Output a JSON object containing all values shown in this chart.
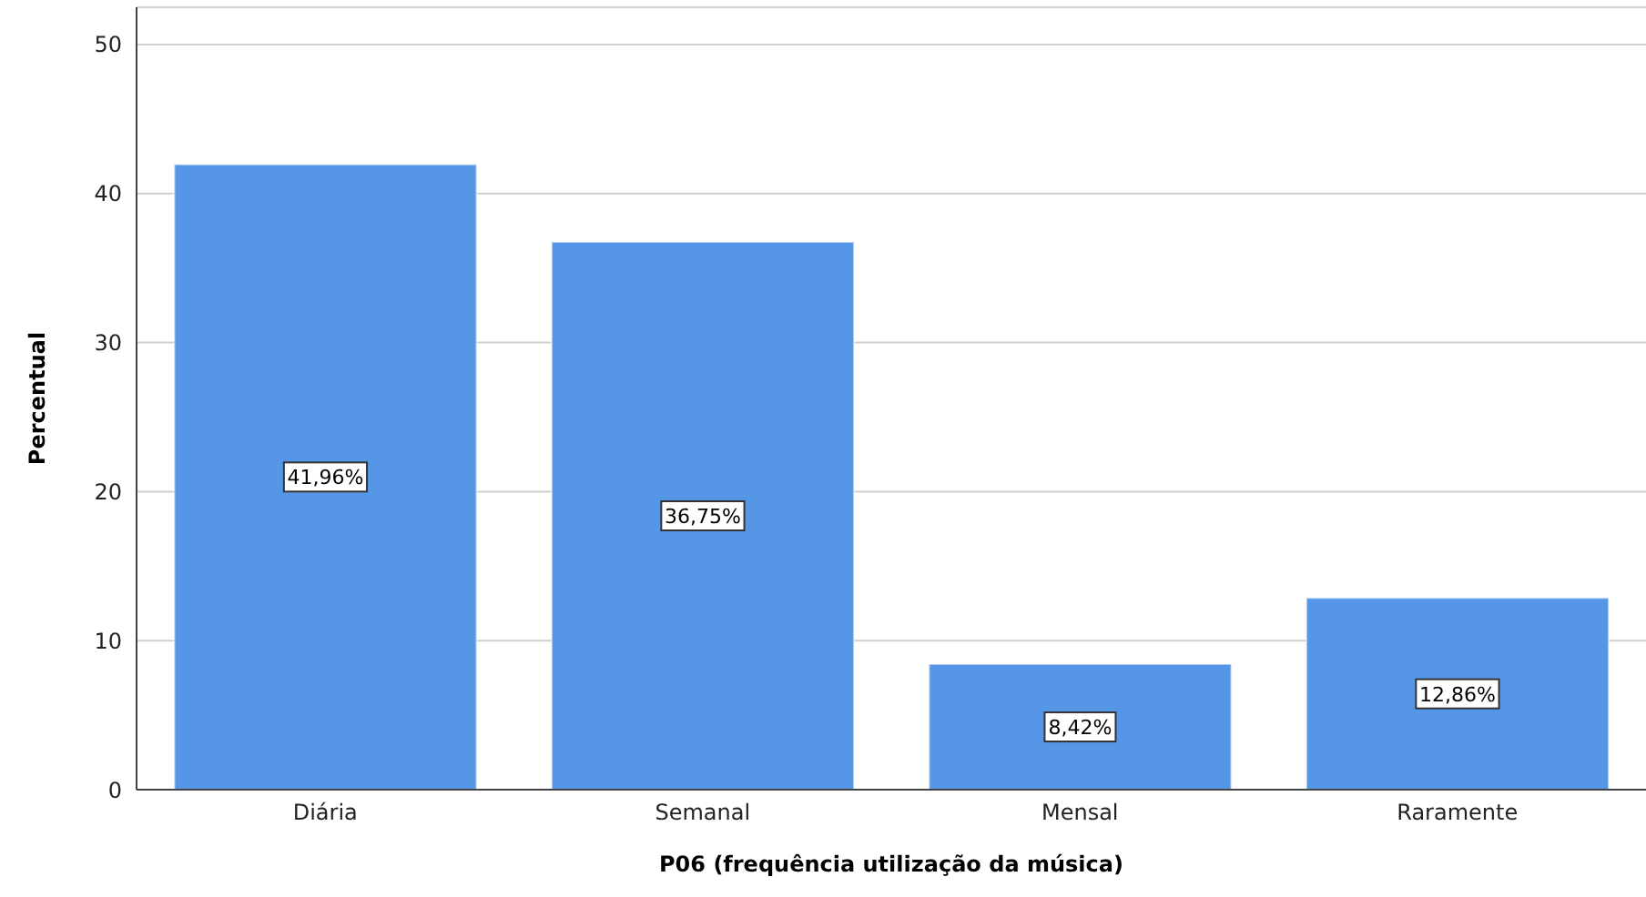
{
  "chart_data": {
    "type": "bar",
    "xlabel": "P06 (frequência utilização da música)",
    "ylabel": "Percentual",
    "categories": [
      "Diária",
      "Semanal",
      "Mensal",
      "Raramente"
    ],
    "values": [
      41.96,
      36.75,
      8.42,
      12.86
    ],
    "value_labels": [
      "41,96%",
      "36,75%",
      "8,42%",
      "12,86%"
    ],
    "color": "#5596e6",
    "ylim": [
      0,
      52.5
    ],
    "yticks": [
      0,
      10,
      20,
      30,
      40,
      50
    ],
    "grid": "y"
  }
}
